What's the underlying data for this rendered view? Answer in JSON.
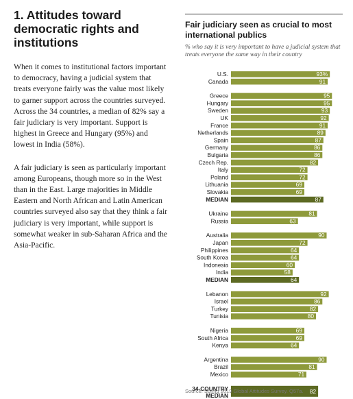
{
  "article": {
    "heading": "1. Attitudes toward democratic rights and institutions",
    "paragraph_1": "When it comes to institutional factors important to democracy, having a judicial system that treats everyone fairly was the value most likely to garner support across the countries surveyed. Across the 34 countries, a median of 82% say a fair judiciary is very important. Support is highest in Greece and Hungary (95%) and lowest in India (58%).",
    "paragraph_2": "A fair judiciary is seen as particularly important among Europeans, though more so in the West than in the East. Large majorities in Middle Eastern and North African and Latin American countries surveyed also say that they think a fair judiciary is very important, while support is somewhat weaker in sub-Saharan Africa and the Asia-Pacific."
  },
  "source": "Source: Spring 2019 Global Attitudes Survey. Q57a.",
  "colors": {
    "bar": "#8e9a3b",
    "median_bar": "#5d6a23"
  },
  "chart_data": {
    "type": "bar",
    "orientation": "horizontal",
    "title": "Fair judiciary seen as crucial to most international publics",
    "subtitle": "% who say it is very important to have a judicial system that treats everyone the same way in their country",
    "xlim": [
      0,
      100
    ],
    "value_suffix_first_row": "%",
    "groups": [
      {
        "rows": [
          {
            "label": "U.S.",
            "value": 93
          },
          {
            "label": "Canada",
            "value": 91
          }
        ]
      },
      {
        "rows": [
          {
            "label": "Greece",
            "value": 95
          },
          {
            "label": "Hungary",
            "value": 95
          },
          {
            "label": "Sweden",
            "value": 93
          },
          {
            "label": "UK",
            "value": 92
          },
          {
            "label": "France",
            "value": 91
          },
          {
            "label": "Netherlands",
            "value": 89
          },
          {
            "label": "Spain",
            "value": 87
          },
          {
            "label": "Germany",
            "value": 86
          },
          {
            "label": "Bulgaria",
            "value": 86
          },
          {
            "label": "Czech Rep.",
            "value": 82
          },
          {
            "label": "Italy",
            "value": 72
          },
          {
            "label": "Poland",
            "value": 72
          },
          {
            "label": "Lithuania",
            "value": 69
          },
          {
            "label": "Slovakia",
            "value": 69
          },
          {
            "label": "MEDIAN",
            "value": 87,
            "median": true
          }
        ]
      },
      {
        "rows": [
          {
            "label": "Ukraine",
            "value": 81
          },
          {
            "label": "Russia",
            "value": 63
          }
        ]
      },
      {
        "rows": [
          {
            "label": "Australia",
            "value": 90
          },
          {
            "label": "Japan",
            "value": 72
          },
          {
            "label": "Philippines",
            "value": 64
          },
          {
            "label": "South Korea",
            "value": 64
          },
          {
            "label": "Indonesia",
            "value": 60
          },
          {
            "label": "India",
            "value": 58
          },
          {
            "label": "MEDIAN",
            "value": 64,
            "median": true
          }
        ]
      },
      {
        "rows": [
          {
            "label": "Lebanon",
            "value": 92
          },
          {
            "label": "Israel",
            "value": 86
          },
          {
            "label": "Turkey",
            "value": 82
          },
          {
            "label": "Tunisia",
            "value": 80
          }
        ]
      },
      {
        "rows": [
          {
            "label": "Nigeria",
            "value": 69
          },
          {
            "label": "South Africa",
            "value": 69
          },
          {
            "label": "Kenya",
            "value": 64
          }
        ]
      },
      {
        "rows": [
          {
            "label": "Argentina",
            "value": 90
          },
          {
            "label": "Brazil",
            "value": 81
          },
          {
            "label": "Mexico",
            "value": 71
          }
        ]
      },
      {
        "rows": [
          {
            "label": "34-COUNTRY MEDIAN",
            "label_lines": [
              "34-COUNTRY",
              "MEDIAN"
            ],
            "value": 82,
            "median": true,
            "overall": true
          }
        ]
      }
    ]
  }
}
